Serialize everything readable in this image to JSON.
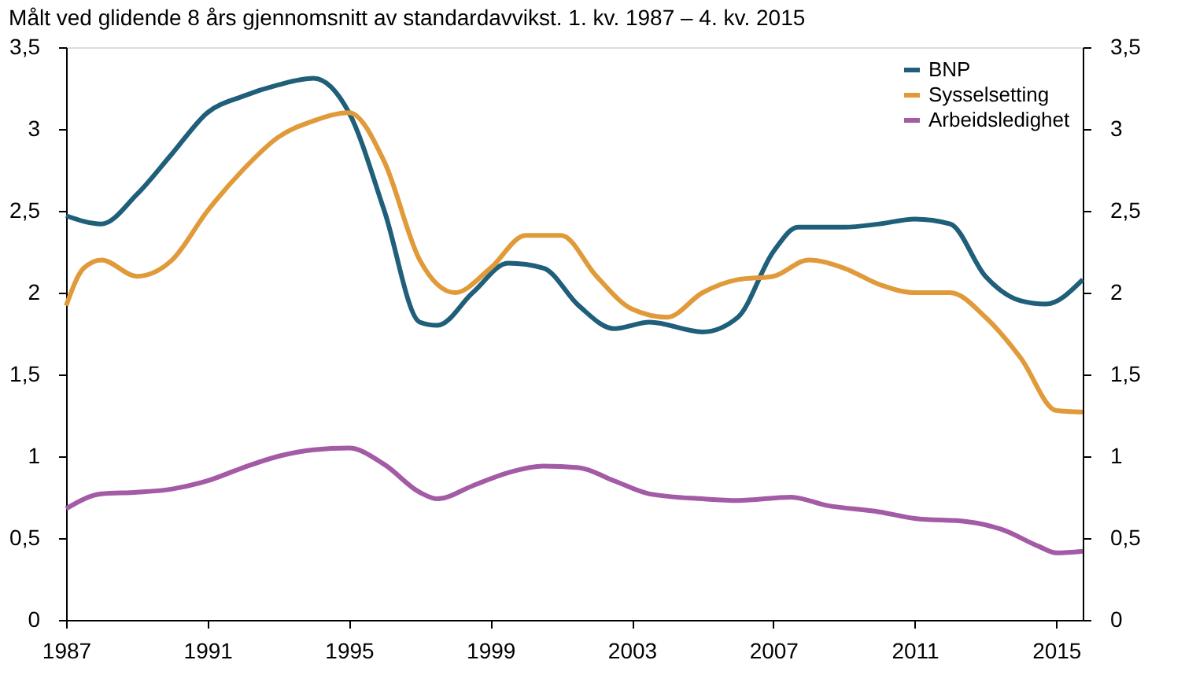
{
  "chart_data": {
    "type": "line",
    "title": "Målt ved glidende 8 års gjennomsnitt av standardavvikst. 1. kv. 1987 – 4. kv. 2015",
    "xlim": [
      1987,
      2015.75
    ],
    "xticks": [
      1987,
      1991,
      1995,
      1999,
      2003,
      2007,
      2011,
      2015
    ],
    "ylim": [
      0,
      3.5
    ],
    "yticks": [
      0,
      {
        "value": 0.5,
        "label": "0,5"
      },
      1,
      {
        "value": 1.5,
        "label": "1,5"
      },
      2,
      {
        "value": 2.5,
        "label": "2,5"
      },
      3,
      {
        "value": 3.5,
        "label": "3,5"
      }
    ],
    "y2lim": [
      0,
      3.5
    ],
    "y2ticks": [
      0,
      {
        "value": 0.5,
        "label": "0,5"
      },
      1,
      {
        "value": 1.5,
        "label": "1,5"
      },
      2,
      {
        "value": 2.5,
        "label": "2,5"
      },
      3,
      {
        "value": 3.5,
        "label": "3,5"
      }
    ],
    "grid": false,
    "legend": "top right",
    "marker": "none",
    "line_style": "solid",
    "series": [
      {
        "name": "BNP",
        "color": "#1f5f7a",
        "x": [
          1987,
          1988,
          1989,
          1990,
          1991,
          1992,
          1993,
          1994,
          1995,
          1996,
          1997,
          1997.5,
          1998.5,
          1999.5,
          2000.5,
          2001.5,
          2002.5,
          2003.5,
          2005,
          2006,
          2007,
          2007.7,
          2009,
          2010,
          2011,
          2012,
          2013,
          2014,
          2014.7,
          2015.75
        ],
        "values": [
          2.47,
          2.42,
          2.6,
          2.85,
          3.1,
          3.2,
          3.27,
          3.31,
          3.1,
          2.5,
          1.82,
          1.8,
          2.0,
          2.18,
          2.15,
          1.92,
          1.78,
          1.82,
          1.76,
          1.85,
          2.25,
          2.4,
          2.4,
          2.42,
          2.45,
          2.42,
          2.1,
          1.95,
          1.93,
          2.08
        ]
      },
      {
        "name": "Sysselsetting",
        "color": "#e09a3a",
        "x": [
          1987,
          1987.5,
          1988,
          1989,
          1990,
          1991,
          1992,
          1993,
          1994,
          1995,
          1996,
          1997,
          1998,
          1999,
          2000,
          2001,
          2002,
          2003,
          2004,
          2005,
          2006,
          2007,
          2008,
          2009,
          2010,
          2011,
          2012,
          2013,
          2014,
          2015,
          2015.75
        ],
        "values": [
          1.92,
          2.15,
          2.2,
          2.1,
          2.2,
          2.5,
          2.75,
          2.95,
          3.05,
          3.1,
          2.8,
          2.2,
          2.0,
          2.15,
          2.35,
          2.35,
          2.1,
          1.9,
          1.85,
          2.0,
          2.08,
          2.1,
          2.2,
          2.15,
          2.05,
          2.0,
          2.0,
          1.85,
          1.6,
          1.28,
          1.27
        ]
      },
      {
        "name": "Arbeidsledighet",
        "color": "#a35ba6",
        "x": [
          1987,
          1988,
          1989,
          1990,
          1991,
          1992,
          1993,
          1994,
          1995,
          1996,
          1997,
          1997.5,
          1998.5,
          1999.5,
          2000.5,
          2001.5,
          2002.5,
          2003.5,
          2005,
          2006,
          2007.5,
          2008.5,
          2010,
          2011,
          2012.5,
          2013.5,
          2014.5,
          2015,
          2015.75
        ],
        "values": [
          0.68,
          0.77,
          0.78,
          0.8,
          0.85,
          0.93,
          1.0,
          1.04,
          1.05,
          0.95,
          0.78,
          0.74,
          0.82,
          0.9,
          0.94,
          0.93,
          0.85,
          0.77,
          0.74,
          0.73,
          0.75,
          0.7,
          0.66,
          0.62,
          0.6,
          0.55,
          0.45,
          0.41,
          0.42
        ]
      }
    ]
  }
}
